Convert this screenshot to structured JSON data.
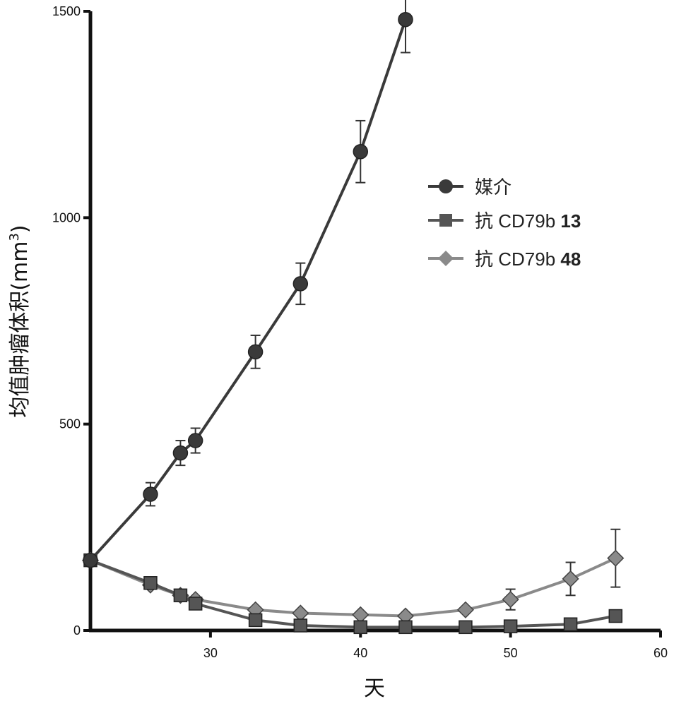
{
  "chart_data": {
    "type": "line",
    "title": "",
    "xlabel": "天",
    "ylabel": "均值肿瘤体积(mm3)",
    "ylabel_main": "均值肿瘤体积(mm",
    "ylabel_sup": "3",
    "ylabel_close": ")",
    "xlim": [
      22,
      60
    ],
    "ylim": [
      0,
      1500
    ],
    "x_ticks": [
      30,
      40,
      50,
      60
    ],
    "y_ticks": [
      0,
      500,
      1000,
      1500
    ],
    "grid": false,
    "legend_position": "right",
    "series": [
      {
        "name": "媒介",
        "marker": "circle",
        "color": "#3a3a3a",
        "x": [
          22,
          26,
          28,
          29,
          33,
          36,
          40,
          43
        ],
        "y": [
          170,
          330,
          430,
          460,
          675,
          840,
          1160,
          1480
        ],
        "err": [
          0,
          28,
          30,
          30,
          40,
          50,
          75,
          80
        ]
      },
      {
        "name": "抗 CD79b 13",
        "name_main": "抗 CD79b",
        "name_bold": "13",
        "marker": "square",
        "color": "#555555",
        "x": [
          22,
          26,
          28,
          29,
          33,
          36,
          40,
          43,
          47,
          50,
          54,
          57
        ],
        "y": [
          170,
          115,
          85,
          65,
          25,
          12,
          8,
          8,
          8,
          10,
          15,
          35
        ],
        "err": [
          0,
          0,
          0,
          0,
          0,
          0,
          0,
          0,
          0,
          0,
          0,
          0
        ]
      },
      {
        "name": "抗 CD79b 48",
        "name_main": "抗 CD79b",
        "name_bold": "48",
        "marker": "diamond",
        "color": "#8a8a8a",
        "x": [
          22,
          26,
          28,
          29,
          33,
          36,
          40,
          43,
          47,
          50,
          54,
          57
        ],
        "y": [
          170,
          110,
          85,
          75,
          50,
          42,
          38,
          35,
          50,
          75,
          125,
          175
        ],
        "err": [
          0,
          0,
          0,
          0,
          0,
          0,
          0,
          0,
          0,
          25,
          40,
          70
        ]
      }
    ]
  }
}
